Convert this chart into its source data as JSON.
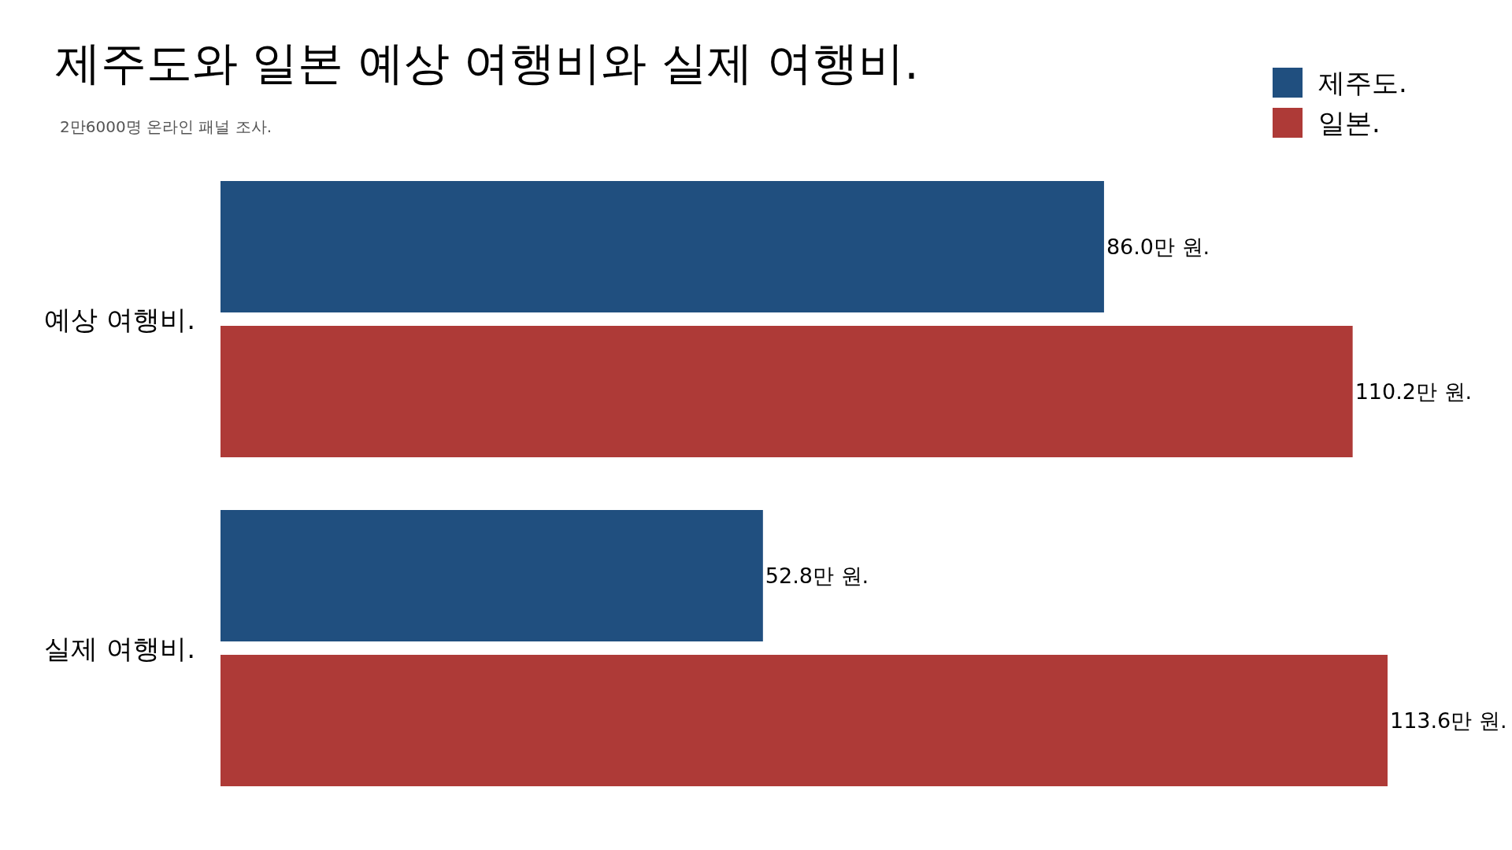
{
  "chart_data": {
    "type": "bar",
    "orientation": "horizontal",
    "title": "제주도와 일본 예상 여행비와 실제 여행비.",
    "subtitle": "2만6000명 온라인 패널 조사.",
    "categories": [
      "예상 여행비.",
      "실제 여행비."
    ],
    "series": [
      {
        "name": "제주도.",
        "color": "#204f7f",
        "values": [
          86.0,
          52.8
        ],
        "value_labels": [
          "86.0만 원.",
          "52.8만 원."
        ]
      },
      {
        "name": "일본.",
        "color": "#ae3a37",
        "values": [
          110.2,
          113.6
        ],
        "value_labels": [
          "110.2만 원.",
          "113.6만 원."
        ]
      }
    ],
    "legend": "top right",
    "tick_labels": "y"
  }
}
